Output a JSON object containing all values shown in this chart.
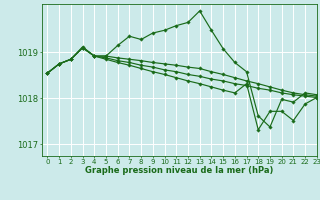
{
  "bg_color": "#cceaea",
  "grid_color": "#ffffff",
  "line_color": "#1a6b1a",
  "marker_color": "#1a6b1a",
  "xlabel": "Graphe pression niveau de la mer (hPa)",
  "xlim": [
    -0.5,
    23
  ],
  "ylim": [
    1016.75,
    1020.05
  ],
  "yticks": [
    1017,
    1018,
    1019
  ],
  "xticks": [
    0,
    1,
    2,
    3,
    4,
    5,
    6,
    7,
    8,
    9,
    10,
    11,
    12,
    13,
    14,
    15,
    16,
    17,
    18,
    19,
    20,
    21,
    22,
    23
  ],
  "series": [
    [
      1018.55,
      1018.75,
      1018.85,
      1019.1,
      1018.92,
      1018.92,
      1019.15,
      1019.35,
      1019.28,
      1019.42,
      1019.48,
      1019.58,
      1019.65,
      1019.9,
      1019.48,
      1019.08,
      1018.78,
      1018.58,
      1017.62,
      1017.38,
      1017.98,
      1017.92,
      1018.12,
      1018.08
    ],
    [
      1018.55,
      1018.75,
      1018.85,
      1019.1,
      1018.92,
      1018.92,
      1018.88,
      1018.85,
      1018.82,
      1018.78,
      1018.75,
      1018.72,
      1018.68,
      1018.65,
      1018.58,
      1018.52,
      1018.45,
      1018.38,
      1018.32,
      1018.25,
      1018.18,
      1018.12,
      1018.08,
      1018.05
    ],
    [
      1018.55,
      1018.75,
      1018.85,
      1019.1,
      1018.92,
      1018.88,
      1018.82,
      1018.78,
      1018.72,
      1018.68,
      1018.62,
      1018.58,
      1018.52,
      1018.48,
      1018.42,
      1018.38,
      1018.32,
      1018.28,
      1018.22,
      1018.18,
      1018.12,
      1018.08,
      1018.05,
      1018.02
    ],
    [
      1018.55,
      1018.75,
      1018.85,
      1019.12,
      1018.92,
      1018.85,
      1018.78,
      1018.72,
      1018.65,
      1018.58,
      1018.52,
      1018.45,
      1018.38,
      1018.32,
      1018.25,
      1018.18,
      1018.12,
      1018.32,
      1017.32,
      1017.72,
      1017.72,
      1017.52,
      1017.88,
      1018.02
    ]
  ]
}
